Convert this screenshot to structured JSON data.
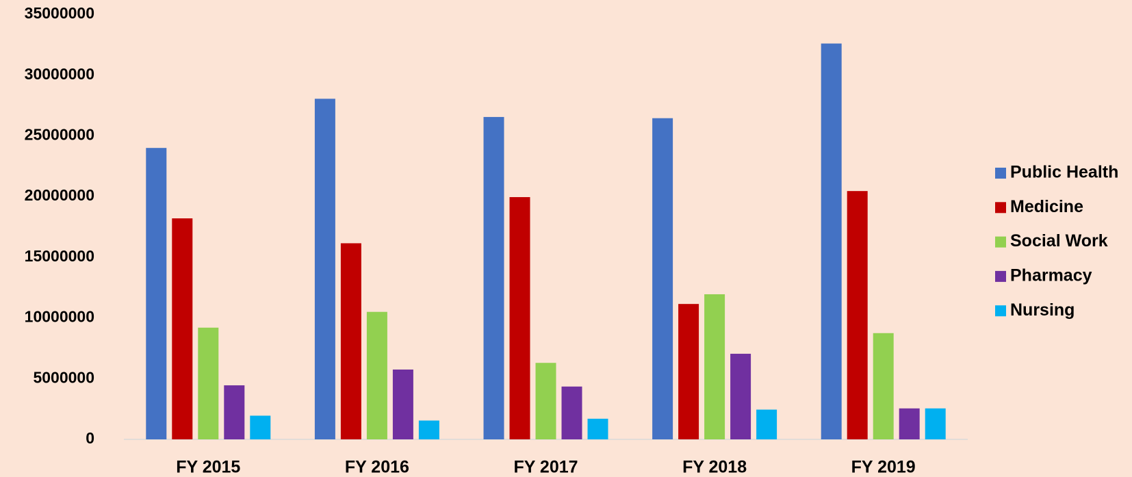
{
  "chart_data": {
    "type": "bar",
    "categories": [
      "FY 2015",
      "FY 2016",
      "FY 2017",
      "FY 2018",
      "FY 2019"
    ],
    "series": [
      {
        "name": "Public Health",
        "color": "#4472c4",
        "values": [
          24000000,
          28050000,
          26550000,
          26450000,
          32600000
        ]
      },
      {
        "name": "Medicine",
        "color": "#c00000",
        "values": [
          18200000,
          16150000,
          19950000,
          11150000,
          20450000
        ]
      },
      {
        "name": "Social Work",
        "color": "#92d050",
        "values": [
          9200000,
          10500000,
          6300000,
          11950000,
          8750000
        ]
      },
      {
        "name": "Pharmacy",
        "color": "#7030a0",
        "values": [
          4450000,
          5750000,
          4350000,
          7050000,
          2550000
        ]
      },
      {
        "name": "Nursing",
        "color": "#00b0f0",
        "values": [
          1950000,
          1550000,
          1700000,
          2450000,
          2550000
        ]
      }
    ],
    "ylim": [
      0,
      35000000
    ],
    "yticks": [
      0,
      5000000,
      10000000,
      15000000,
      20000000,
      25000000,
      30000000,
      35000000
    ],
    "grid": false,
    "legend": "right"
  }
}
